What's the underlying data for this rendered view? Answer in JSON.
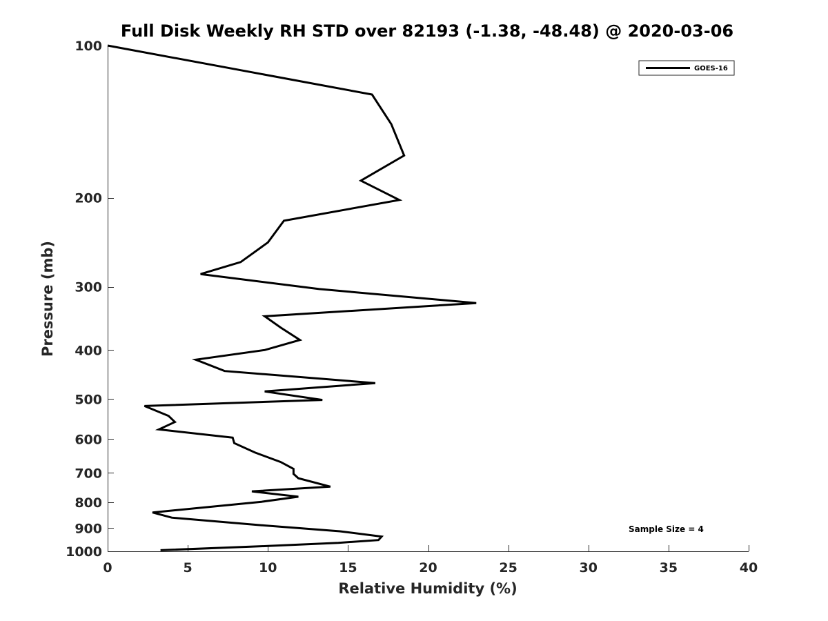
{
  "chart_data": {
    "type": "line",
    "title": "Full Disk Weekly RH STD over 82193 (-1.38, -48.48) @ 2020-03-06",
    "xlabel": "Relative Humidity (%)",
    "ylabel": "Pressure (mb)",
    "xlim": [
      0,
      40
    ],
    "ylim": [
      100,
      1000
    ],
    "yscale": "log",
    "y_reversed": true,
    "grid": false,
    "x_ticks": [
      0,
      5,
      10,
      15,
      20,
      25,
      30,
      35,
      40
    ],
    "y_ticks": [
      100,
      200,
      300,
      400,
      500,
      600,
      700,
      800,
      900,
      1000
    ],
    "legend": {
      "position": "top-right",
      "entries": [
        "GOES-16"
      ]
    },
    "annotation": "Sample Size = 4",
    "series": [
      {
        "name": "GOES-16",
        "color": "#000000",
        "points": [
          [
            0,
            100
          ],
          [
            16.5,
            125
          ],
          [
            17.7,
            143
          ],
          [
            18.5,
            165
          ],
          [
            15.8,
            185
          ],
          [
            18.2,
            202
          ],
          [
            11.0,
            222
          ],
          [
            10.0,
            245
          ],
          [
            8.3,
            268
          ],
          [
            5.8,
            283
          ],
          [
            13.2,
            303
          ],
          [
            23.0,
            323
          ],
          [
            9.8,
            343
          ],
          [
            10.8,
            361
          ],
          [
            12.0,
            382
          ],
          [
            9.8,
            400
          ],
          [
            5.5,
            418
          ],
          [
            7.3,
            440
          ],
          [
            16.7,
            465
          ],
          [
            9.8,
            483
          ],
          [
            13.4,
            502
          ],
          [
            2.3,
            516
          ],
          [
            3.8,
            540
          ],
          [
            4.2,
            555
          ],
          [
            3.2,
            574
          ],
          [
            7.8,
            596
          ],
          [
            7.9,
            611
          ],
          [
            9.2,
            638
          ],
          [
            10.8,
            666
          ],
          [
            11.6,
            687
          ],
          [
            11.6,
            703
          ],
          [
            11.9,
            717
          ],
          [
            13.9,
            745
          ],
          [
            9.0,
            761
          ],
          [
            11.9,
            780
          ],
          [
            9.6,
            798
          ],
          [
            2.8,
            838
          ],
          [
            4.0,
            858
          ],
          [
            9.6,
            888
          ],
          [
            14.5,
            913
          ],
          [
            17.1,
            935
          ],
          [
            16.9,
            950
          ],
          [
            14.4,
            962
          ],
          [
            10.0,
            976
          ],
          [
            3.3,
            995
          ]
        ]
      }
    ]
  }
}
